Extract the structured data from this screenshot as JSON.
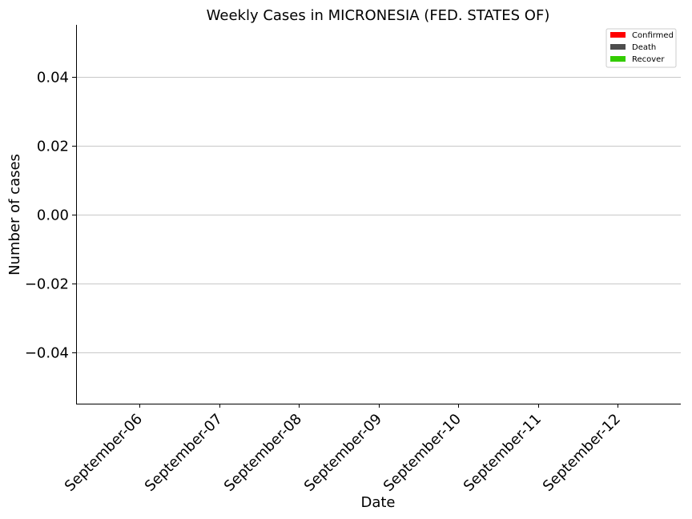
{
  "chart_data": {
    "type": "bar",
    "title": "Weekly Cases in MICRONESIA (FED. STATES OF)",
    "xlabel": "Date",
    "ylabel": "Number of cases",
    "categories": [
      "September-06",
      "September-07",
      "September-08",
      "September-09",
      "September-10",
      "September-11",
      "September-12"
    ],
    "series": [
      {
        "name": "Confirmed",
        "color": "#ff0000",
        "values": [
          0,
          0,
          0,
          0,
          0,
          0,
          0
        ]
      },
      {
        "name": "Death",
        "color": "#4d4d4d",
        "values": [
          0,
          0,
          0,
          0,
          0,
          0,
          0
        ]
      },
      {
        "name": "Recover",
        "color": "#33cc00",
        "values": [
          0,
          0,
          0,
          0,
          0,
          0,
          0
        ]
      }
    ],
    "ylim": [
      -0.055,
      0.055
    ],
    "yticks": [
      -0.04,
      -0.02,
      0.0,
      0.02,
      0.04
    ],
    "ytick_labels": [
      "−0.04",
      "−0.02",
      "0.00",
      "0.02",
      "0.04"
    ],
    "grid": "horizontal",
    "legend_position": "top-right"
  }
}
